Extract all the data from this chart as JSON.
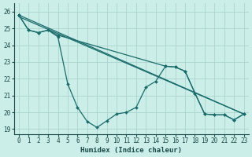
{
  "xlabel": "Humidex (Indice chaleur)",
  "background_color": "#cceee8",
  "grid_color": "#aad4ce",
  "line_color": "#1a6b6b",
  "xlim": [
    -0.5,
    23.5
  ],
  "ylim": [
    18.7,
    26.5
  ],
  "yticks": [
    19,
    20,
    21,
    22,
    23,
    24,
    25,
    26
  ],
  "xticks": [
    0,
    1,
    2,
    3,
    4,
    5,
    6,
    7,
    8,
    9,
    10,
    11,
    12,
    13,
    14,
    15,
    16,
    17,
    18,
    19,
    20,
    21,
    22,
    23
  ],
  "series_wavy": {
    "x": [
      0,
      1,
      2,
      3,
      4,
      5,
      6,
      7,
      8,
      9,
      10,
      11,
      12,
      13,
      14,
      15,
      16,
      17,
      18,
      19,
      20,
      21,
      22,
      23
    ],
    "y": [
      25.8,
      24.9,
      24.75,
      24.9,
      24.5,
      21.7,
      20.3,
      19.45,
      19.1,
      19.5,
      19.9,
      20.0,
      20.3,
      21.5,
      21.85,
      22.75,
      22.7,
      22.45,
      21.15,
      19.9,
      19.85,
      19.85,
      19.55,
      19.9
    ]
  },
  "series_partial": {
    "x": [
      0,
      1,
      2,
      3,
      4,
      15,
      16,
      17,
      18,
      19,
      20,
      21,
      22,
      23
    ],
    "y": [
      25.8,
      24.9,
      24.75,
      24.9,
      24.6,
      22.75,
      22.7,
      22.45,
      21.15,
      19.9,
      19.85,
      19.85,
      19.55,
      19.9
    ]
  },
  "series_line1": {
    "x": [
      0,
      23
    ],
    "y": [
      25.8,
      19.9
    ]
  },
  "series_line2": {
    "x": [
      0,
      23
    ],
    "y": [
      25.7,
      19.9
    ]
  }
}
